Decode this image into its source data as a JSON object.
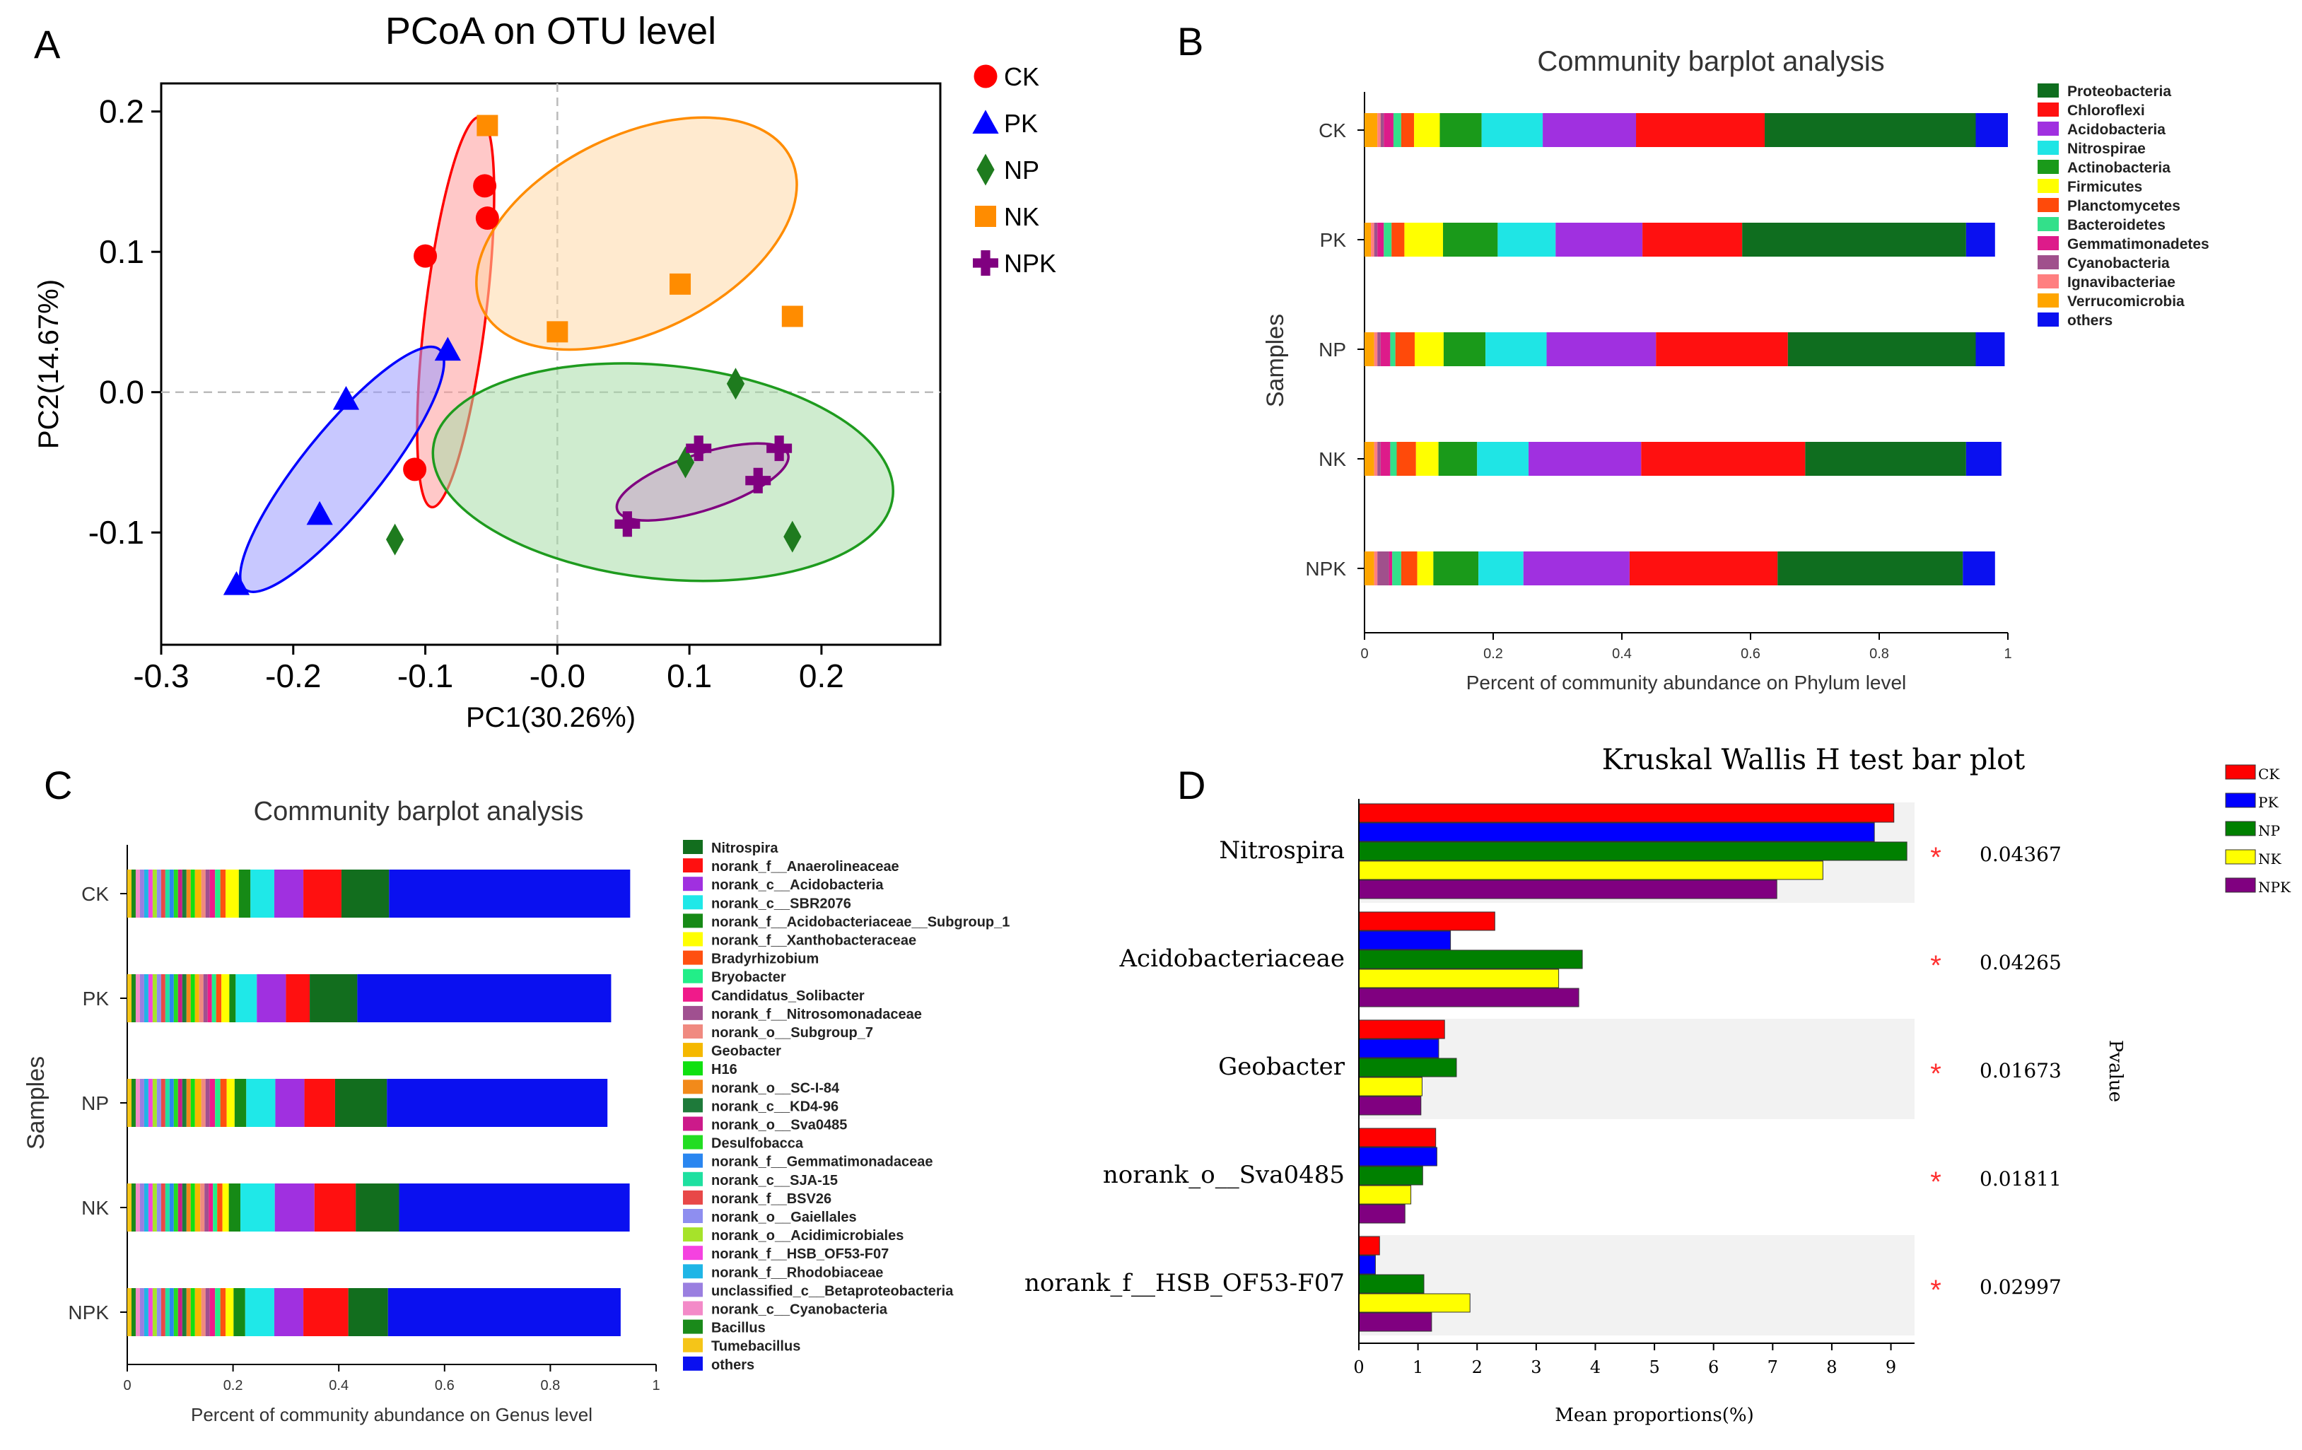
{
  "panels": {
    "a": "A",
    "b": "B",
    "c": "C",
    "d": "D"
  },
  "chart_data": [
    {
      "id": "A",
      "type": "scatter",
      "title": "PCoA on OTU level",
      "xlabel": "PC1(30.26%)",
      "ylabel": "PC2(14.67%)",
      "xlim": [
        -0.3,
        0.29
      ],
      "ylim": [
        -0.18,
        0.22
      ],
      "xticks": [
        -0.3,
        -0.2,
        -0.1,
        0.0,
        0.1,
        0.2
      ],
      "xtick_labels": [
        "-0.3",
        "-0.2",
        "-0.1",
        "-0.0",
        "0.1",
        "0.2"
      ],
      "yticks": [
        -0.1,
        0.0,
        0.1,
        0.2
      ],
      "ytick_labels": [
        "-0.1",
        "0.0",
        "0.1",
        "0.2"
      ],
      "legend_position": "right-outside",
      "series": [
        {
          "name": "CK",
          "marker": "circle",
          "color": "#ff0000",
          "points": [
            [
              -0.055,
              0.147
            ],
            [
              -0.053,
              0.124
            ],
            [
              -0.1,
              0.097
            ],
            [
              -0.108,
              -0.055
            ]
          ],
          "ellipse": {
            "center": [
              -0.077,
              0.057
            ],
            "radii": [
              0.023,
              0.14
            ],
            "angle_deg": 7,
            "fill": "#ff9a9a",
            "stroke": "#ff0000"
          }
        },
        {
          "name": "PK",
          "marker": "triangle",
          "color": "#0000ff",
          "points": [
            [
              -0.16,
              -0.005
            ],
            [
              -0.083,
              0.03
            ],
            [
              -0.18,
              -0.087
            ],
            [
              -0.243,
              -0.137
            ]
          ],
          "ellipse": {
            "center": [
              -0.163,
              -0.055
            ],
            "radii": [
              0.03,
              0.11
            ],
            "angle_deg": 39,
            "fill": "#9a9aff",
            "stroke": "#0000ff"
          }
        },
        {
          "name": "NP",
          "marker": "diamond",
          "color": "#1e7b1e",
          "points": [
            [
              0.135,
              0.006
            ],
            [
              0.097,
              -0.05
            ],
            [
              -0.123,
              -0.105
            ],
            [
              0.178,
              -0.103
            ]
          ],
          "ellipse": {
            "center": [
              0.08,
              -0.057
            ],
            "radii": [
              0.175,
              0.076
            ],
            "angle_deg": 6,
            "fill": "#a8dca8",
            "stroke": "#1e9b1e"
          }
        },
        {
          "name": "NK",
          "marker": "square",
          "color": "#ff8c00",
          "points": [
            [
              -0.053,
              0.19
            ],
            [
              0.093,
              0.077
            ],
            [
              0.178,
              0.054
            ],
            [
              0.0,
              0.043
            ]
          ],
          "ellipse": {
            "center": [
              0.06,
              0.113
            ],
            "radii": [
              0.13,
              0.07
            ],
            "angle_deg": -26,
            "fill": "#ffd9a8",
            "stroke": "#ff8c00"
          }
        },
        {
          "name": "NPK",
          "marker": "plus",
          "color": "#800080",
          "points": [
            [
              0.053,
              -0.094
            ],
            [
              0.107,
              -0.04
            ],
            [
              0.152,
              -0.063
            ],
            [
              0.168,
              -0.04
            ]
          ],
          "ellipse": {
            "center": [
              0.11,
              -0.064
            ],
            "radii": [
              0.068,
              0.02
            ],
            "angle_deg": -18,
            "fill": "#c8a0c8",
            "stroke": "#800080"
          }
        }
      ]
    },
    {
      "id": "B",
      "type": "bar",
      "orientation": "horizontal-stacked",
      "title": "Community barplot analysis",
      "xlabel": "Percent of community abundance on Phylum level",
      "ylabel": "Samples",
      "xlim": [
        0,
        1
      ],
      "xticks": [
        0,
        0.2,
        0.4,
        0.6,
        0.8,
        1
      ],
      "xtick_labels": [
        "0",
        "0.2",
        "0.4",
        "0.6",
        "0.8",
        "1"
      ],
      "categories": [
        "CK",
        "PK",
        "NP",
        "NK",
        "NPK"
      ],
      "legend_position": "right",
      "series": [
        {
          "name": "Verrucomicrobia",
          "color": "#ffa500",
          "values": [
            0.02,
            0.01,
            0.015,
            0.015,
            0.015
          ]
        },
        {
          "name": "Ignavibacteriae",
          "color": "#ff7f80",
          "values": [
            0.005,
            0.005,
            0.005,
            0.005,
            0.005
          ]
        },
        {
          "name": "Cyanobacteria",
          "color": "#a0508c",
          "values": [
            0.005,
            0.005,
            0.005,
            0.005,
            0.018
          ]
        },
        {
          "name": "Gemmatimonadetes",
          "color": "#dd1b8a",
          "values": [
            0.015,
            0.01,
            0.015,
            0.015,
            0.005
          ]
        },
        {
          "name": "Bacteroidetes",
          "color": "#33e08a",
          "values": [
            0.012,
            0.012,
            0.008,
            0.01,
            0.014
          ]
        },
        {
          "name": "Planctomycetes",
          "color": "#ff4a0a",
          "values": [
            0.02,
            0.02,
            0.03,
            0.03,
            0.025
          ]
        },
        {
          "name": "Firmicutes",
          "color": "#ffff00",
          "values": [
            0.04,
            0.06,
            0.045,
            0.035,
            0.025
          ]
        },
        {
          "name": "Actinobacteria",
          "color": "#1a9a1a",
          "values": [
            0.065,
            0.085,
            0.065,
            0.06,
            0.07
          ]
        },
        {
          "name": "Nitrospirae",
          "color": "#1fe5e5",
          "values": [
            0.095,
            0.09,
            0.095,
            0.08,
            0.07
          ]
        },
        {
          "name": "Acidobacteria",
          "color": "#a030e0",
          "values": [
            0.145,
            0.135,
            0.17,
            0.175,
            0.165
          ]
        },
        {
          "name": "Chloroflexi",
          "color": "#ff1010",
          "values": [
            0.2,
            0.155,
            0.205,
            0.255,
            0.23
          ]
        },
        {
          "name": "Proteobacteria",
          "color": "#0f6e1f",
          "values": [
            0.328,
            0.348,
            0.292,
            0.25,
            0.288
          ]
        },
        {
          "name": "others",
          "color": "#0a10f0",
          "values": [
            0.05,
            0.045,
            0.045,
            0.055,
            0.05
          ]
        }
      ],
      "legend_order": [
        "Proteobacteria",
        "Chloroflexi",
        "Acidobacteria",
        "Nitrospirae",
        "Actinobacteria",
        "Firmicutes",
        "Planctomycetes",
        "Bacteroidetes",
        "Gemmatimonadetes",
        "Cyanobacteria",
        "Ignavibacteriae",
        "Verrucomicrobia",
        "others"
      ]
    },
    {
      "id": "C",
      "type": "bar",
      "orientation": "horizontal-stacked",
      "title": "Community barplot analysis",
      "xlabel": "Percent of community abundance on Genus level",
      "ylabel": "Samples",
      "xlim": [
        0,
        1
      ],
      "xticks": [
        0,
        0.2,
        0.4,
        0.6,
        0.8,
        1
      ],
      "xtick_labels": [
        "0",
        "0.2",
        "0.4",
        "0.6",
        "0.8",
        "1"
      ],
      "categories": [
        "CK",
        "PK",
        "NP",
        "NK",
        "NPK"
      ],
      "legend_position": "right",
      "series": [
        {
          "name": "Tumebacillus",
          "color": "#f5c518",
          "values": [
            0.008,
            0.008,
            0.008,
            0.008,
            0.008
          ]
        },
        {
          "name": "Bacillus",
          "color": "#1a8a1a",
          "values": [
            0.008,
            0.008,
            0.008,
            0.008,
            0.008
          ]
        },
        {
          "name": "norank_c__Cyanobacteria",
          "color": "#f38ac8",
          "values": [
            0.008,
            0.008,
            0.008,
            0.008,
            0.008
          ]
        },
        {
          "name": "unclassified_c__Betaproteobacteria",
          "color": "#9a7fe0",
          "values": [
            0.008,
            0.008,
            0.008,
            0.008,
            0.008
          ]
        },
        {
          "name": "norank_f__Rhodobiaceae",
          "color": "#1fb5e6",
          "values": [
            0.008,
            0.008,
            0.008,
            0.008,
            0.008
          ]
        },
        {
          "name": "norank_f__HSB_OF53-F07",
          "color": "#f542e0",
          "values": [
            0.008,
            0.008,
            0.008,
            0.008,
            0.008
          ]
        },
        {
          "name": "norank_o__Acidimicrobiales",
          "color": "#a6e32a",
          "values": [
            0.008,
            0.008,
            0.008,
            0.008,
            0.008
          ]
        },
        {
          "name": "norank_o__Gaiellales",
          "color": "#8e8ef0",
          "values": [
            0.008,
            0.008,
            0.008,
            0.008,
            0.008
          ]
        },
        {
          "name": "norank_f__BSV26",
          "color": "#e84848",
          "values": [
            0.008,
            0.008,
            0.008,
            0.008,
            0.008
          ]
        },
        {
          "name": "norank_c__SJA-15",
          "color": "#1ee0a0",
          "values": [
            0.008,
            0.008,
            0.008,
            0.008,
            0.008
          ]
        },
        {
          "name": "norank_f__Gemmatimonadaceae",
          "color": "#2a86f0",
          "values": [
            0.008,
            0.008,
            0.008,
            0.008,
            0.008
          ]
        },
        {
          "name": "Desulfobacca",
          "color": "#22dd22",
          "values": [
            0.008,
            0.008,
            0.008,
            0.008,
            0.008
          ]
        },
        {
          "name": "norank_o__Sva0485",
          "color": "#cc1a8a",
          "values": [
            0.008,
            0.008,
            0.008,
            0.008,
            0.008
          ]
        },
        {
          "name": "norank_c__KD4-96",
          "color": "#1e7a3a",
          "values": [
            0.008,
            0.008,
            0.008,
            0.008,
            0.008
          ]
        },
        {
          "name": "norank_o__SC-I-84",
          "color": "#f28a1a",
          "values": [
            0.008,
            0.008,
            0.008,
            0.008,
            0.008
          ]
        },
        {
          "name": "H16",
          "color": "#10e010",
          "values": [
            0.008,
            0.008,
            0.008,
            0.008,
            0.008
          ]
        },
        {
          "name": "Geobacter",
          "color": "#f5b800",
          "values": [
            0.012,
            0.008,
            0.012,
            0.01,
            0.012
          ]
        },
        {
          "name": "norank_o__Subgroup_7",
          "color": "#f08a80",
          "values": [
            0.008,
            0.008,
            0.008,
            0.008,
            0.008
          ]
        },
        {
          "name": "norank_f__Nitrosomonadaceae",
          "color": "#a05090",
          "values": [
            0.008,
            0.008,
            0.008,
            0.008,
            0.008
          ]
        },
        {
          "name": "Candidatus_Solibacter",
          "color": "#f01a8a",
          "values": [
            0.01,
            0.008,
            0.01,
            0.008,
            0.01
          ]
        },
        {
          "name": "Bryobacter",
          "color": "#22ee88",
          "values": [
            0.01,
            0.008,
            0.01,
            0.008,
            0.01
          ]
        },
        {
          "name": "Bradyrhizobium",
          "color": "#ff5010",
          "values": [
            0.01,
            0.01,
            0.012,
            0.01,
            0.01
          ]
        },
        {
          "name": "norank_f__Xanthobacteraceae",
          "color": "#ffff00",
          "values": [
            0.025,
            0.015,
            0.015,
            0.012,
            0.015
          ]
        },
        {
          "name": "norank_f__Acidobacteriaceae__Subgroup_1",
          "color": "#168a16",
          "values": [
            0.022,
            0.012,
            0.022,
            0.022,
            0.022
          ]
        },
        {
          "name": "norank_c__SBR2076",
          "color": "#1fe8e8",
          "values": [
            0.045,
            0.04,
            0.055,
            0.065,
            0.055
          ]
        },
        {
          "name": "norank_c__Acidobacteria",
          "color": "#a030e0",
          "values": [
            0.055,
            0.055,
            0.055,
            0.075,
            0.055
          ]
        },
        {
          "name": "norank_f__Anaerolineaceae",
          "color": "#ff1010",
          "values": [
            0.072,
            0.045,
            0.058,
            0.078,
            0.085
          ]
        },
        {
          "name": "Nitrospira",
          "color": "#126e1e",
          "values": [
            0.09,
            0.09,
            0.098,
            0.082,
            0.075
          ]
        },
        {
          "name": "others",
          "color": "#0a10f0",
          "values": [
            0.456,
            0.48,
            0.417,
            0.436,
            0.44
          ]
        }
      ],
      "legend_order": [
        "Nitrospira",
        "norank_f__Anaerolineaceae",
        "norank_c__Acidobacteria",
        "norank_c__SBR2076",
        "norank_f__Acidobacteriaceae__Subgroup_1",
        "norank_f__Xanthobacteraceae",
        "Bradyrhizobium",
        "Bryobacter",
        "Candidatus_Solibacter",
        "norank_f__Nitrosomonadaceae",
        "norank_o__Subgroup_7",
        "Geobacter",
        "H16",
        "norank_o__SC-I-84",
        "norank_c__KD4-96",
        "norank_o__Sva0485",
        "Desulfobacca",
        "norank_f__Gemmatimonadaceae",
        "norank_c__SJA-15",
        "norank_f__BSV26",
        "norank_o__Gaiellales",
        "norank_o__Acidimicrobiales",
        "norank_f__HSB_OF53-F07",
        "norank_f__Rhodobiaceae",
        "unclassified_c__Betaproteobacteria",
        "norank_c__Cyanobacteria",
        "Bacillus",
        "Tumebacillus",
        "others"
      ]
    },
    {
      "id": "D",
      "type": "bar",
      "orientation": "horizontal-grouped",
      "title": "Kruskal Wallis H test bar plot",
      "xlabel": "Mean proportions(%)",
      "right_axis_label": "Pvalue",
      "xlim": [
        0,
        9.4
      ],
      "xticks": [
        0,
        1,
        2,
        3,
        4,
        5,
        6,
        7,
        8,
        9
      ],
      "xtick_labels": [
        "0",
        "1",
        "2",
        "3",
        "4",
        "5",
        "6",
        "7",
        "8",
        "9"
      ],
      "categories": [
        "Nitrospira",
        "Acidobacteriaceae",
        "Geobacter",
        "norank_o__Sva0485",
        "norank_f__HSB_OF53-F07"
      ],
      "significance_marker": "*",
      "pvalues": [
        "0.04367",
        "0.04265",
        "0.01673",
        "0.01811",
        "0.02997"
      ],
      "legend_position": "top-right",
      "series": [
        {
          "name": "CK",
          "color": "#ff0000",
          "values": [
            9.05,
            2.3,
            1.45,
            1.3,
            0.35
          ]
        },
        {
          "name": "PK",
          "color": "#0000ff",
          "values": [
            8.72,
            1.55,
            1.35,
            1.32,
            0.28
          ]
        },
        {
          "name": "NP",
          "color": "#008000",
          "values": [
            9.27,
            3.78,
            1.65,
            1.08,
            1.1
          ]
        },
        {
          "name": "NK",
          "color": "#ffff00",
          "values": [
            7.85,
            3.38,
            1.07,
            0.88,
            1.88
          ]
        },
        {
          "name": "NPK",
          "color": "#800080",
          "values": [
            7.07,
            3.72,
            1.05,
            0.78,
            1.23
          ]
        }
      ]
    }
  ]
}
